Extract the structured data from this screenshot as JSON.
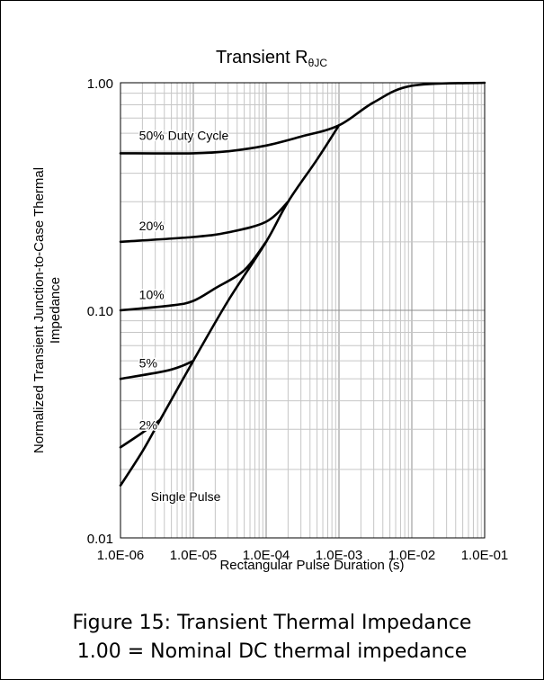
{
  "chart_data": {
    "type": "line",
    "title_main": "Transient R",
    "title_sub": "θJC",
    "xlabel": "Rectangular Pulse Duration (s)",
    "ylabel_line1": "Normalized Transient Junction-to-Case Thermal",
    "ylabel_line2": "Impedance",
    "xscale": "log",
    "yscale": "log",
    "xlim": [
      1e-06,
      0.1
    ],
    "ylim": [
      0.01,
      1.0
    ],
    "grid": true,
    "x_tick_labels": [
      "1.0E-06",
      "1.0E-05",
      "1.0E-04",
      "1.0E-03",
      "1.0E-02",
      "1.0E-01"
    ],
    "y_tick_labels": [
      "0.01",
      "0.10",
      "1.00"
    ],
    "series": [
      {
        "name": "50% Duty Cycle",
        "points": [
          [
            1e-06,
            0.49
          ],
          [
            1e-05,
            0.49
          ],
          [
            3e-05,
            0.5
          ],
          [
            0.0001,
            0.53
          ],
          [
            0.0003,
            0.58
          ],
          [
            0.001,
            0.65
          ],
          [
            0.003,
            0.82
          ],
          [
            0.01,
            0.97
          ],
          [
            0.1,
            1.0
          ]
        ]
      },
      {
        "name": "20%",
        "points": [
          [
            1e-06,
            0.2
          ],
          [
            1e-05,
            0.21
          ],
          [
            3e-05,
            0.22
          ],
          [
            0.0001,
            0.245
          ],
          [
            0.0002,
            0.3
          ]
        ]
      },
      {
        "name": "10%",
        "points": [
          [
            1e-06,
            0.1
          ],
          [
            5e-06,
            0.105
          ],
          [
            1e-05,
            0.11
          ],
          [
            2e-05,
            0.125
          ],
          [
            5e-05,
            0.15
          ],
          [
            0.0001,
            0.2
          ]
        ]
      },
      {
        "name": "5%",
        "points": [
          [
            1e-06,
            0.05
          ],
          [
            4e-06,
            0.054
          ],
          [
            7e-06,
            0.057
          ],
          [
            1e-05,
            0.06
          ]
        ]
      },
      {
        "name": "2%",
        "points": [
          [
            1e-06,
            0.025
          ],
          [
            2e-06,
            0.029
          ],
          [
            3.5e-06,
            0.033
          ]
        ]
      },
      {
        "name": "Single Pulse",
        "points": [
          [
            1e-06,
            0.017
          ],
          [
            2e-06,
            0.024
          ],
          [
            3.5e-06,
            0.033
          ],
          [
            1e-05,
            0.06
          ],
          [
            3e-05,
            0.11
          ],
          [
            0.0001,
            0.2
          ],
          [
            0.0002,
            0.3
          ],
          [
            0.0005,
            0.46
          ],
          [
            0.001,
            0.65
          ]
        ]
      }
    ],
    "series_labels": [
      {
        "text": "50% Duty Cycle",
        "x": 1.8e-06,
        "y": 0.56
      },
      {
        "text": "20%",
        "x": 1.8e-06,
        "y": 0.225
      },
      {
        "text": "10%",
        "x": 1.8e-06,
        "y": 0.112
      },
      {
        "text": "5%",
        "x": 1.8e-06,
        "y": 0.056
      },
      {
        "text": "2%",
        "x": 1.8e-06,
        "y": 0.03
      },
      {
        "text": "Single Pulse",
        "x": 2.6e-06,
        "y": 0.0145
      }
    ]
  },
  "caption": {
    "line1": "Figure 15: Transient Thermal Impedance",
    "line2": "1.00 = Nominal DC thermal impedance"
  }
}
